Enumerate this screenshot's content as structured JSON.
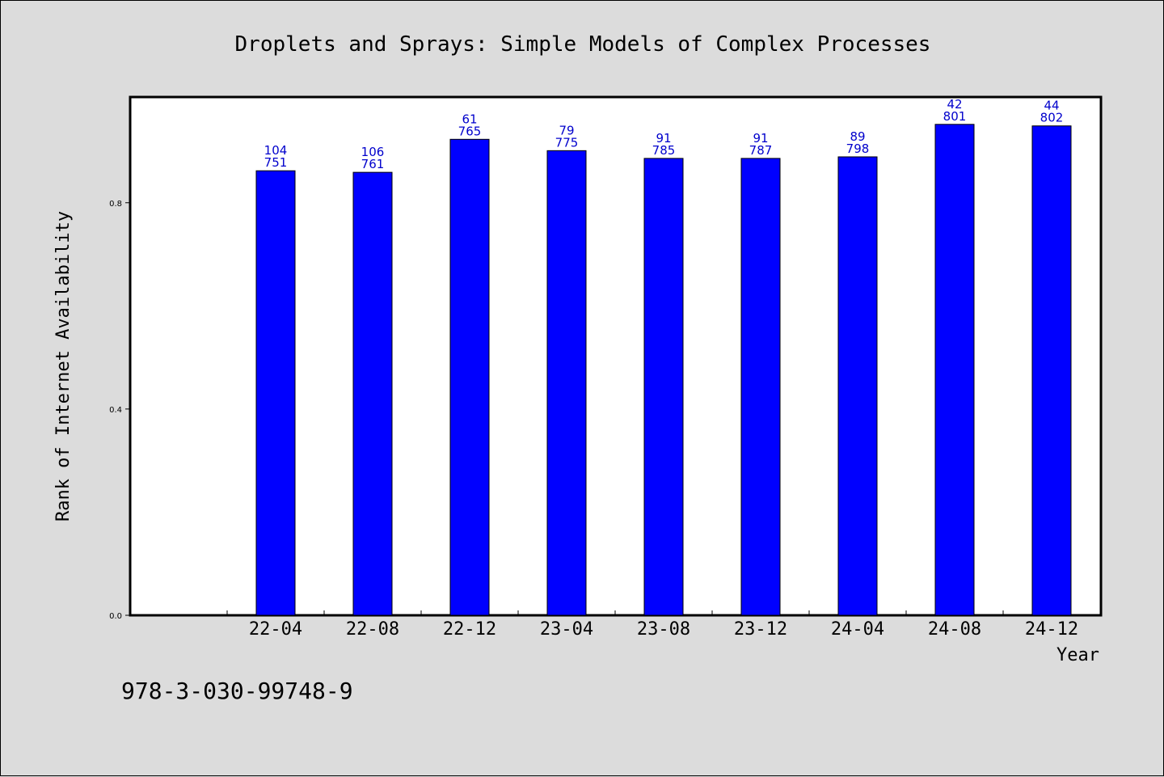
{
  "chart_data": {
    "type": "bar",
    "title": "Droplets and Sprays: Simple Models of Complex Processes",
    "xlabel": "Year",
    "ylabel": "Rank of Internet Availability",
    "categories": [
      "22-04",
      "22-08",
      "22-12",
      "23-04",
      "23-08",
      "23-12",
      "24-04",
      "24-08",
      "24-12"
    ],
    "values": [
      0.862,
      0.859,
      0.923,
      0.901,
      0.886,
      0.886,
      0.889,
      0.952,
      0.949
    ],
    "label_top": [
      "104",
      "106",
      "61",
      "79",
      "91",
      "91",
      "89",
      "42",
      "44"
    ],
    "label_bottom": [
      "751",
      "761",
      "765",
      "775",
      "785",
      "787",
      "798",
      "801",
      "802"
    ],
    "ylim": [
      0,
      1.005
    ],
    "yticks": [
      "0.0",
      "0.4",
      "0.8"
    ],
    "grid": false,
    "bar_color": "#0000ff",
    "label_color": "#0000cc"
  },
  "footer": {
    "isbn": "978-3-030-99748-9"
  }
}
